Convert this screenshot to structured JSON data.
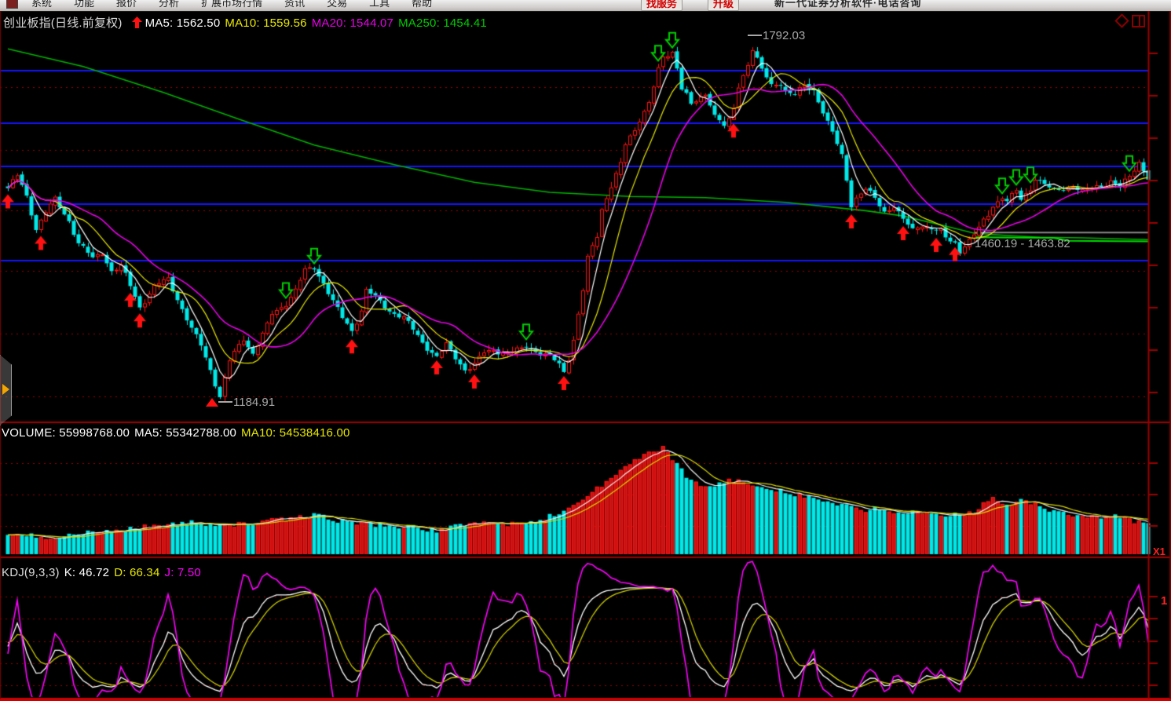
{
  "window": {
    "menu_items": [
      "系统",
      "功能",
      "报价",
      "分析",
      "扩展市场行情",
      "资讯",
      "交易",
      "工具",
      "帮助"
    ],
    "promo_buttons": [
      "找服务",
      "升级"
    ],
    "banner_text": "新一代证券分析软件·电话咨询"
  },
  "palette": {
    "up_red": "#ff1111",
    "down_cyan": "#00e8e8",
    "ma5_white": "#ffffff",
    "ma10_yellow": "#e8e800",
    "ma20_magenta": "#e800e8",
    "ma250_green": "#00b300",
    "level_blue": "#1414ff",
    "grid_red": "#9b0000",
    "axis_red": "#9b0000",
    "separator_red": "#a00000",
    "bottom_edge_red": "#cc0000",
    "annotation_gray": "#a8a8a8"
  },
  "main_pane": {
    "title": "创业板指(日线.前复权)",
    "ma_items": [
      {
        "label": "MA5:",
        "value": "1562.50",
        "color": "#ffffff"
      },
      {
        "label": "MA10:",
        "value": "1559.56",
        "color": "#e8e800"
      },
      {
        "label": "MA20:",
        "value": "1544.07",
        "color": "#e800e8"
      },
      {
        "label": "MA250:",
        "value": "1454.41",
        "color": "#00cc00"
      }
    ],
    "annotations": {
      "high": "1792.03",
      "low": "1184.91",
      "range": "1460.19 - 1463.82"
    }
  },
  "volume_pane": {
    "items": [
      {
        "label": "VOLUME:",
        "value": "55998768.00",
        "color": "#ffffff"
      },
      {
        "label": "MA5:",
        "value": "55342788.00",
        "color": "#ffffff"
      },
      {
        "label": "MA10:",
        "value": "54538416.00",
        "color": "#e8e800"
      }
    ],
    "multiplier_label": "X1"
  },
  "kdj_pane": {
    "items": [
      {
        "label": "KDJ(9,3,3)",
        "value": "",
        "color": "#dddddd"
      },
      {
        "label": "K:",
        "value": "46.72",
        "color": "#ffffff"
      },
      {
        "label": "D:",
        "value": "66.34",
        "color": "#e8e800"
      },
      {
        "label": "J:",
        "value": "7.50",
        "color": "#ff00ff"
      }
    ],
    "right_label": "1"
  },
  "chart_data": [
    {
      "type": "candlestick",
      "title": "创业板指(日线.前复权)",
      "visible_high": 1792.03,
      "visible_low": 1184.91,
      "range_band_label": "1460.19 - 1463.82",
      "ma_values": {
        "MA5": 1562.5,
        "MA10": 1559.56,
        "MA20": 1544.07,
        "MA250": 1454.41
      },
      "price_axis_range": [
        1150,
        1845
      ],
      "blue_level_lines": [
        1744,
        1655,
        1582,
        1518,
        1422
      ],
      "dotted_grid_lines": [
        1716,
        1610,
        1507,
        1405,
        1299,
        1193
      ],
      "candle_count": 243,
      "close_anchors": [
        [
          0,
          1545
        ],
        [
          2,
          1565
        ],
        [
          4,
          1531
        ],
        [
          6,
          1478
        ],
        [
          8,
          1505
        ],
        [
          10,
          1525
        ],
        [
          13,
          1491
        ],
        [
          15,
          1452
        ],
        [
          18,
          1425
        ],
        [
          20,
          1438
        ],
        [
          22,
          1405
        ],
        [
          24,
          1412
        ],
        [
          26,
          1380
        ],
        [
          28,
          1345
        ],
        [
          31,
          1378
        ],
        [
          34,
          1392
        ],
        [
          36,
          1359
        ],
        [
          39,
          1305
        ],
        [
          41,
          1279
        ],
        [
          43,
          1239
        ],
        [
          45,
          1192
        ],
        [
          47,
          1252
        ],
        [
          49,
          1279
        ],
        [
          50,
          1292
        ],
        [
          52,
          1266
        ],
        [
          55,
          1312
        ],
        [
          56,
          1332
        ],
        [
          59,
          1352
        ],
        [
          61,
          1372
        ],
        [
          63,
          1405
        ],
        [
          65,
          1412
        ],
        [
          67,
          1385
        ],
        [
          69,
          1352
        ],
        [
          71,
          1325
        ],
        [
          73,
          1305
        ],
        [
          75,
          1339
        ],
        [
          76,
          1372
        ],
        [
          79,
          1352
        ],
        [
          81,
          1339
        ],
        [
          84,
          1325
        ],
        [
          86,
          1305
        ],
        [
          88,
          1285
        ],
        [
          91,
          1259
        ],
        [
          93,
          1279
        ],
        [
          95,
          1259
        ],
        [
          97,
          1239
        ],
        [
          99,
          1246
        ],
        [
          101,
          1266
        ],
        [
          103,
          1272
        ],
        [
          106,
          1266
        ],
        [
          109,
          1272
        ],
        [
          110,
          1279
        ],
        [
          113,
          1266
        ],
        [
          115,
          1259
        ],
        [
          117,
          1246
        ],
        [
          118,
          1235
        ],
        [
          119,
          1260
        ],
        [
          120,
          1290
        ],
        [
          121,
          1332
        ],
        [
          122,
          1372
        ],
        [
          123,
          1425
        ],
        [
          125,
          1465
        ],
        [
          126,
          1511
        ],
        [
          128,
          1551
        ],
        [
          130,
          1585
        ],
        [
          131,
          1618
        ],
        [
          133,
          1644
        ],
        [
          134,
          1664
        ],
        [
          136,
          1691
        ],
        [
          137,
          1717
        ],
        [
          138,
          1744
        ],
        [
          139,
          1764
        ],
        [
          141,
          1777
        ],
        [
          142,
          1751
        ],
        [
          143,
          1717
        ],
        [
          144,
          1704
        ],
        [
          145,
          1684
        ],
        [
          147,
          1697
        ],
        [
          148,
          1704
        ],
        [
          149,
          1691
        ],
        [
          150,
          1671
        ],
        [
          152,
          1651
        ],
        [
          153,
          1658
        ],
        [
          154,
          1677
        ],
        [
          155,
          1717
        ],
        [
          157,
          1757
        ],
        [
          158,
          1784
        ],
        [
          159,
          1764
        ],
        [
          160,
          1744
        ],
        [
          161,
          1731
        ],
        [
          162,
          1717
        ],
        [
          164,
          1724
        ],
        [
          165,
          1711
        ],
        [
          167,
          1704
        ],
        [
          169,
          1717
        ],
        [
          171,
          1711
        ],
        [
          173,
          1677
        ],
        [
          175,
          1638
        ],
        [
          177,
          1598
        ],
        [
          178,
          1558
        ],
        [
          179,
          1518
        ],
        [
          180,
          1531
        ],
        [
          182,
          1545
        ],
        [
          184,
          1525
        ],
        [
          186,
          1505
        ],
        [
          188,
          1518
        ],
        [
          190,
          1491
        ],
        [
          192,
          1472
        ],
        [
          194,
          1485
        ],
        [
          196,
          1478
        ],
        [
          198,
          1472
        ],
        [
          199,
          1458
        ],
        [
          201,
          1452
        ],
        [
          202,
          1438
        ],
        [
          203,
          1452
        ],
        [
          205,
          1465
        ],
        [
          206,
          1478
        ],
        [
          208,
          1498
        ],
        [
          209,
          1518
        ],
        [
          211,
          1531
        ],
        [
          212,
          1525
        ],
        [
          214,
          1538
        ],
        [
          215,
          1525
        ],
        [
          217,
          1545
        ],
        [
          218,
          1565
        ],
        [
          220,
          1551
        ],
        [
          222,
          1538
        ],
        [
          224,
          1545
        ],
        [
          226,
          1551
        ],
        [
          228,
          1538
        ],
        [
          230,
          1545
        ],
        [
          232,
          1551
        ],
        [
          234,
          1558
        ],
        [
          236,
          1545
        ],
        [
          238,
          1565
        ],
        [
          240,
          1591
        ],
        [
          241,
          1578
        ],
        [
          242,
          1562
        ]
      ],
      "ma250_anchors": [
        [
          0,
          1781
        ],
        [
          16,
          1751
        ],
        [
          33,
          1707
        ],
        [
          49,
          1662
        ],
        [
          65,
          1618
        ],
        [
          82,
          1585
        ],
        [
          99,
          1555
        ],
        [
          115,
          1538
        ],
        [
          132,
          1531
        ],
        [
          148,
          1529
        ],
        [
          165,
          1521
        ],
        [
          182,
          1507
        ],
        [
          190,
          1498
        ],
        [
          199,
          1481
        ],
        [
          205,
          1469
        ],
        [
          212,
          1465
        ],
        [
          219,
          1462
        ],
        [
          228,
          1461
        ],
        [
          242,
          1458
        ]
      ],
      "gray_level_line": {
        "from_index": 205,
        "to_index": 242,
        "price": 1470
      },
      "green_level_anchors": [
        [
          205,
          1462
        ],
        [
          222,
          1461
        ],
        [
          225,
          1456
        ],
        [
          242,
          1455
        ]
      ],
      "signal_up_indices": [
        0,
        7,
        26,
        28,
        73,
        91,
        99,
        118,
        154,
        179,
        190,
        197,
        201
      ],
      "signal_down_indices": [
        59,
        65,
        110,
        138,
        141,
        211,
        214,
        217,
        238
      ]
    },
    {
      "type": "bar",
      "title": "VOLUME",
      "unit": "millions",
      "latest": 55.998768,
      "ma5": 55.342788,
      "ma10": 54.538416,
      "volume_anchors": [
        [
          0,
          37
        ],
        [
          9,
          33
        ],
        [
          19,
          42
        ],
        [
          29,
          52
        ],
        [
          39,
          60
        ],
        [
          49,
          57
        ],
        [
          59,
          67
        ],
        [
          65,
          75
        ],
        [
          71,
          63
        ],
        [
          78,
          57
        ],
        [
          85,
          52
        ],
        [
          92,
          45
        ],
        [
          99,
          63
        ],
        [
          105,
          57
        ],
        [
          111,
          60
        ],
        [
          118,
          82
        ],
        [
          122,
          105
        ],
        [
          125,
          127
        ],
        [
          129,
          150
        ],
        [
          132,
          172
        ],
        [
          135,
          192
        ],
        [
          139,
          202
        ],
        [
          141,
          180
        ],
        [
          144,
          150
        ],
        [
          146,
          135
        ],
        [
          149,
          127
        ],
        [
          151,
          135
        ],
        [
          154,
          142
        ],
        [
          156,
          135
        ],
        [
          159,
          132
        ],
        [
          161,
          127
        ],
        [
          164,
          123
        ],
        [
          166,
          117
        ],
        [
          169,
          112
        ],
        [
          172,
          105
        ],
        [
          175,
          97
        ],
        [
          179,
          90
        ],
        [
          182,
          82
        ],
        [
          185,
          87
        ],
        [
          189,
          78
        ],
        [
          192,
          82
        ],
        [
          195,
          75
        ],
        [
          199,
          72
        ],
        [
          202,
          78
        ],
        [
          205,
          82
        ],
        [
          209,
          112
        ],
        [
          212,
          90
        ],
        [
          215,
          102
        ],
        [
          219,
          93
        ],
        [
          222,
          82
        ],
        [
          225,
          75
        ],
        [
          229,
          72
        ],
        [
          232,
          67
        ],
        [
          235,
          72
        ],
        [
          239,
          63
        ],
        [
          242,
          56
        ]
      ]
    },
    {
      "type": "line",
      "title": "KDJ(9,3,3)",
      "params": [
        9,
        3,
        3
      ],
      "latest": {
        "K": 46.72,
        "D": 66.34,
        "J": 7.5
      },
      "range": [
        0,
        100
      ],
      "dotted_grid_values": [
        90,
        70,
        50,
        30,
        10
      ],
      "series_colors": {
        "K": "#ffffff",
        "D": "#cccc00",
        "J": "#ff00ff"
      },
      "computed_from": "candlestick series above"
    }
  ]
}
